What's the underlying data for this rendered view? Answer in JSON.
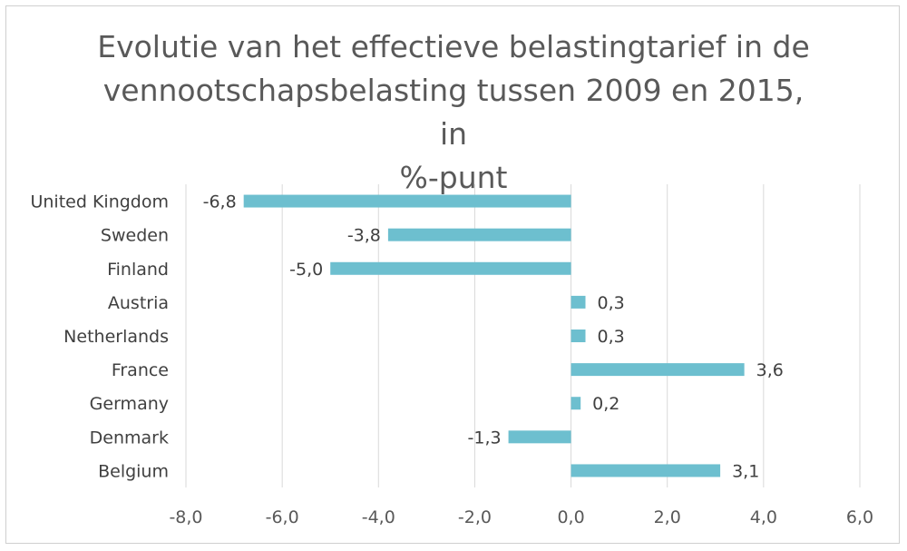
{
  "chart_data": {
    "type": "bar",
    "orientation": "horizontal",
    "title": "Evolutie van het effectieve belastingtarief in de vennootschapsbelasting  tussen 2009 en 2015, in %-punt",
    "title_lines": [
      "Evolutie van het effectieve belastingtarief in de",
      "vennootschapsbelasting  tussen 2009 en 2015, in",
      "%-punt"
    ],
    "categories": [
      "United Kingdom",
      "Sweden",
      "Finland",
      "Austria",
      "Netherlands",
      "France",
      "Germany",
      "Denmark",
      "Belgium"
    ],
    "values": [
      -6.8,
      -3.8,
      -5.0,
      0.3,
      0.3,
      3.6,
      0.2,
      -1.3,
      3.1
    ],
    "data_labels": [
      "-6,8",
      "-3,8",
      "-5,0",
      "0,3",
      "0,3",
      "3,6",
      "0,2",
      "-1,3",
      "3,1"
    ],
    "xlim": [
      -8,
      6
    ],
    "x_ticks": [
      -8,
      -6,
      -4,
      -2,
      0,
      2,
      4,
      6
    ],
    "x_tick_labels": [
      "-8,0",
      "-6,0",
      "-4,0",
      "-2,0",
      "0,0",
      "2,0",
      "4,0",
      "6,0"
    ],
    "grid": "vertical",
    "bar_color": "#6dbfcf",
    "grid_color": "#d9d9d9"
  }
}
